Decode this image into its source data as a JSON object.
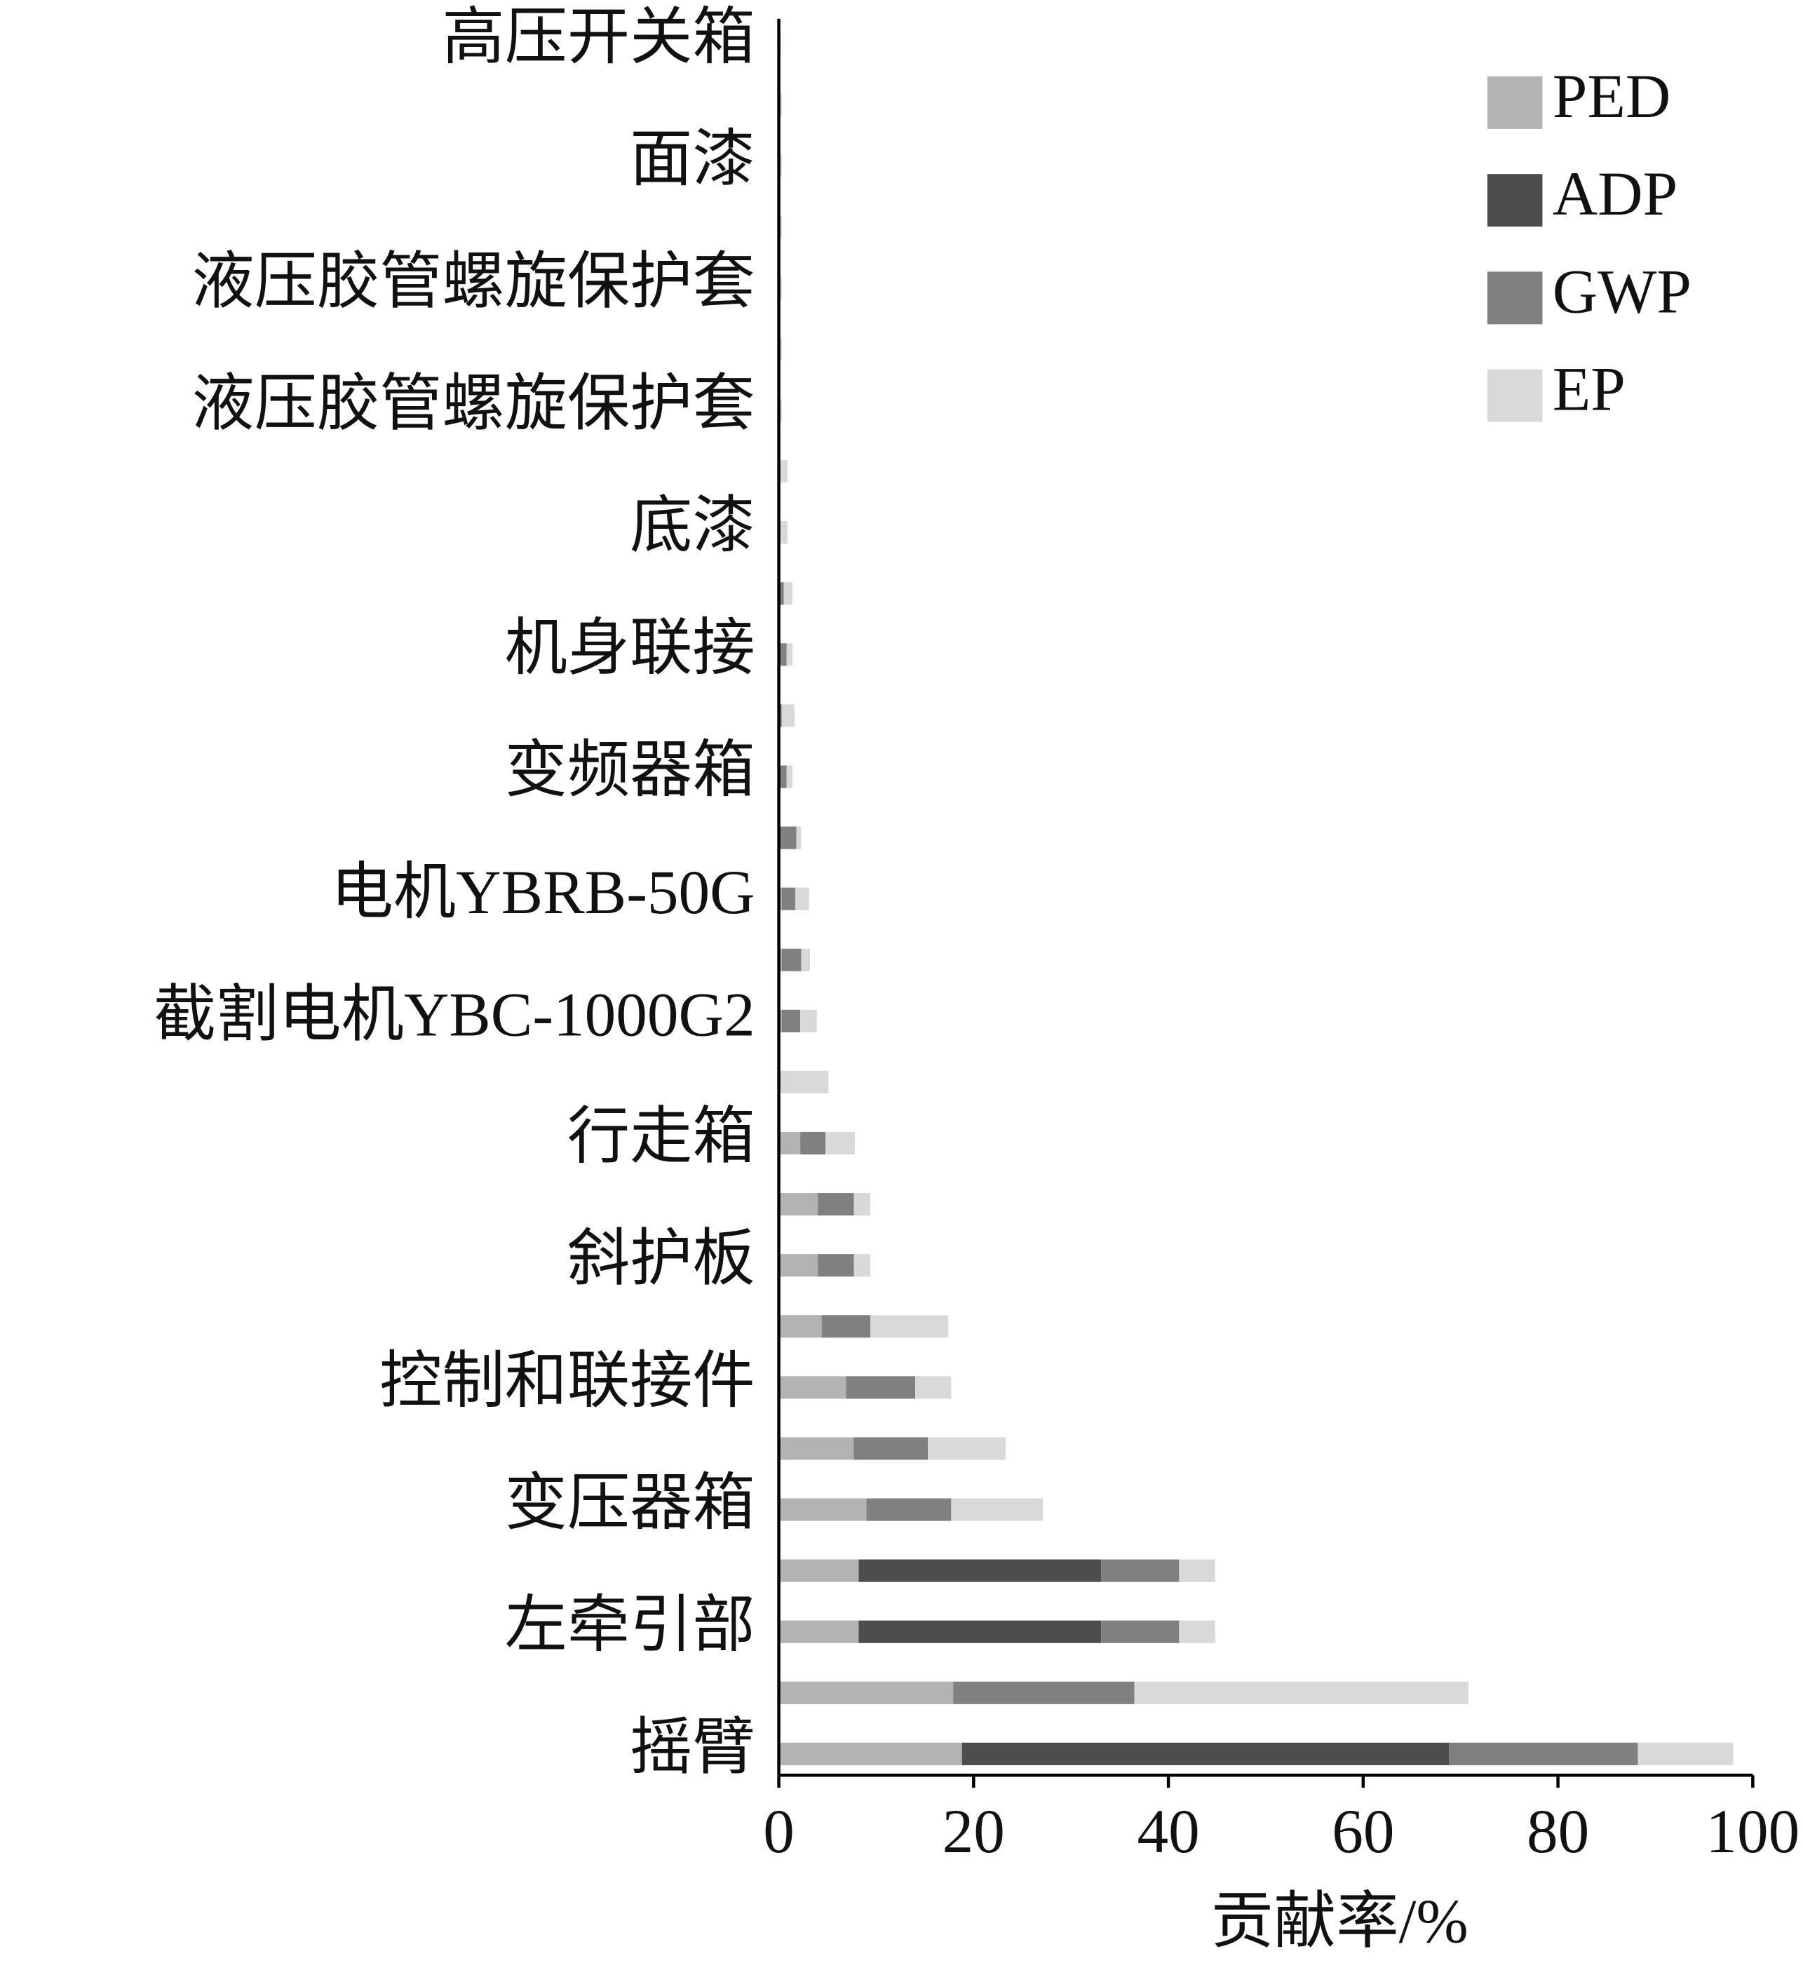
{
  "chart_data": {
    "type": "stacked-bar-horizontal",
    "x_label": "贡献率/%",
    "categories": [
      "高压开关箱",
      null,
      "面漆",
      null,
      "液压胶管螺旋保护套",
      null,
      "液压胶管螺旋保护套",
      null,
      "底漆",
      null,
      "机身联接",
      null,
      "变频器箱",
      null,
      "电机YBRB-50G",
      null,
      "截割电机YBC-1000G2",
      null,
      "行走箱",
      null,
      "斜护板",
      null,
      "控制和联接件",
      null,
      "变压器箱",
      null,
      "左牵引部",
      null,
      "摇臂"
    ],
    "series": [
      {
        "name": "PED",
        "color": "#b3b3b3",
        "values": [
          0,
          0,
          0,
          0,
          0,
          0,
          0,
          0,
          0,
          0,
          0,
          0,
          0,
          0,
          0.3,
          0.3,
          0.3,
          0,
          2.2,
          4,
          4,
          4.4,
          6.9,
          7.7,
          9,
          8.2,
          8.2,
          17.9,
          18.8
        ]
      },
      {
        "name": "ADP",
        "color": "#4d4d4d",
        "values": [
          0,
          0,
          0,
          0,
          0,
          0,
          0,
          0,
          0,
          0,
          0,
          0,
          0,
          0,
          0,
          0,
          0,
          0,
          0,
          0,
          0,
          0,
          0,
          0,
          0,
          24.9,
          24.9,
          0,
          50
        ]
      },
      {
        "name": "GWP",
        "color": "#808080",
        "values": [
          0,
          0,
          0,
          0,
          0,
          0,
          0,
          0,
          0,
          0.5,
          0.8,
          0.3,
          0.8,
          1.8,
          1.4,
          2,
          1.9,
          0,
          2.6,
          3.7,
          3.7,
          5,
          7.1,
          7.6,
          8.7,
          8,
          8,
          18.6,
          19.4
        ]
      },
      {
        "name": "EP",
        "color": "#d9d9d9",
        "values": [
          0.2,
          0.3,
          0.3,
          0.3,
          0.3,
          0.3,
          0.3,
          0.9,
          0.9,
          0.9,
          0.6,
          1.3,
          0.6,
          0.5,
          1.4,
          0.9,
          1.7,
          5.1,
          3,
          1.7,
          1.7,
          8,
          3.7,
          8,
          9.4,
          3.7,
          3.7,
          34.3,
          9.8
        ]
      }
    ],
    "xlim": [
      0,
      100
    ],
    "xticks": [
      0,
      20,
      40,
      60,
      80,
      100
    ],
    "legend": "top-right"
  }
}
